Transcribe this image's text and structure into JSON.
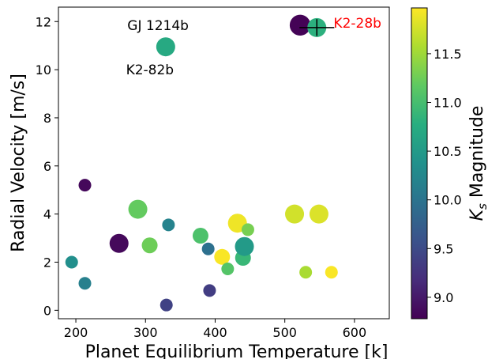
{
  "chart_data": {
    "type": "scatter",
    "xlabel": "Planet Equilibrium Temperature [k]",
    "ylabel": "Radial Velocity [m/s]",
    "xlim": [
      175,
      650
    ],
    "ylim": [
      -0.35,
      12.6
    ],
    "xticks": [
      200,
      300,
      400,
      500,
      600
    ],
    "yticks": [
      0,
      2,
      4,
      6,
      8,
      10,
      12
    ],
    "colorbar": {
      "label_main": "K",
      "label_sub": "s",
      "label_rest": " Magnitude",
      "range": [
        8.78,
        11.97
      ],
      "ticks": [
        9.0,
        9.5,
        10.0,
        10.5,
        11.0,
        11.5
      ],
      "tick_labels": [
        "9.0",
        "9.5",
        "10.0",
        "10.5",
        "11.0",
        "11.5"
      ],
      "colormap": "viridis"
    },
    "points": [
      {
        "x": 213,
        "y": 5.2,
        "mag": 8.85,
        "size": 2
      },
      {
        "x": 262,
        "y": 2.78,
        "mag": 8.85,
        "size": 3
      },
      {
        "x": 194,
        "y": 2.0,
        "mag": 10.35,
        "size": 2
      },
      {
        "x": 213,
        "y": 1.12,
        "mag": 10.15,
        "size": 2
      },
      {
        "x": 289,
        "y": 4.2,
        "mag": 11.2,
        "size": 3
      },
      {
        "x": 306,
        "y": 2.7,
        "mag": 11.25,
        "size": 2.5
      },
      {
        "x": 329,
        "y": 10.95,
        "mag": 10.7,
        "size": 3
      },
      {
        "x": 333,
        "y": 3.55,
        "mag": 10.2,
        "size": 2
      },
      {
        "x": 330,
        "y": 0.22,
        "mag": 9.4,
        "size": 2
      },
      {
        "x": 379,
        "y": 3.1,
        "mag": 11.05,
        "size": 2.5
      },
      {
        "x": 390,
        "y": 2.55,
        "mag": 9.95,
        "size": 2
      },
      {
        "x": 392,
        "y": 0.82,
        "mag": 9.35,
        "size": 2
      },
      {
        "x": 410,
        "y": 2.22,
        "mag": 11.95,
        "size": 2.5
      },
      {
        "x": 418,
        "y": 1.72,
        "mag": 11.1,
        "size": 2
      },
      {
        "x": 432,
        "y": 3.62,
        "mag": 11.9,
        "size": 3
      },
      {
        "x": 440,
        "y": 2.18,
        "mag": 10.9,
        "size": 2.5
      },
      {
        "x": 442,
        "y": 2.65,
        "mag": 10.5,
        "size": 3
      },
      {
        "x": 447,
        "y": 3.35,
        "mag": 11.3,
        "size": 2
      },
      {
        "x": 514,
        "y": 4.0,
        "mag": 11.75,
        "size": 3
      },
      {
        "x": 549,
        "y": 4.0,
        "mag": 11.8,
        "size": 3
      },
      {
        "x": 530,
        "y": 1.58,
        "mag": 11.55,
        "size": 2
      },
      {
        "x": 567,
        "y": 1.58,
        "mag": 11.95,
        "size": 2
      },
      {
        "x": 522,
        "y": 11.85,
        "mag": 8.8,
        "size": 3.3
      },
      {
        "x": 546,
        "y": 11.75,
        "mag": 10.8,
        "size": 3
      }
    ],
    "errorbar": {
      "x": 546,
      "y": 11.75,
      "xerr": 25,
      "yerr": 0.35
    },
    "annotations": [
      {
        "text": "GJ 1214b",
        "x": 362,
        "y": 11.85,
        "color": "#000000",
        "anchor": "end"
      },
      {
        "text": "K2-28b",
        "x": 570,
        "y": 11.95,
        "color": "#ff0000",
        "anchor": "start"
      },
      {
        "text": "K2-82b",
        "x": 272,
        "y": 10.0,
        "color": "#000000",
        "anchor": "start"
      }
    ]
  }
}
